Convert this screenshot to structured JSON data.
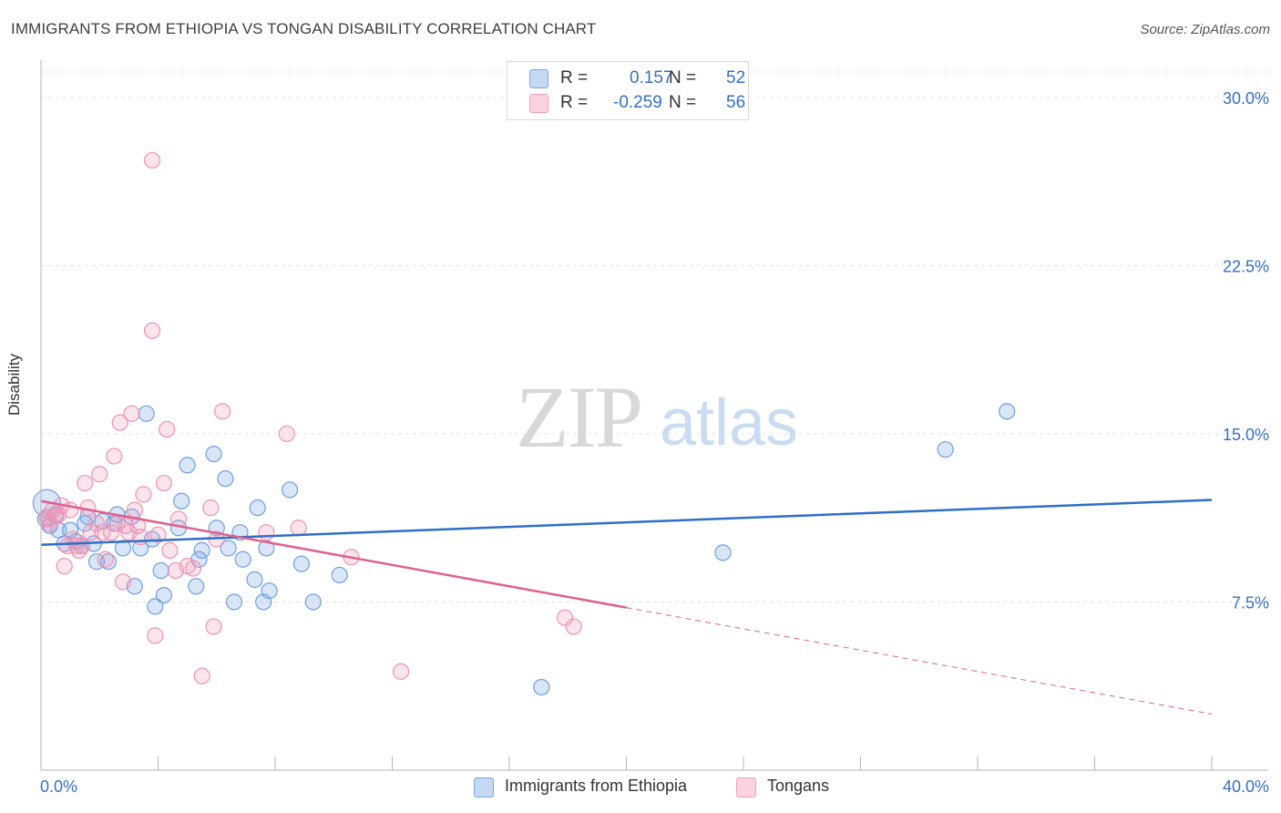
{
  "title": "IMMIGRANTS FROM ETHIOPIA VS TONGAN DISABILITY CORRELATION CHART",
  "source": "Source: ZipAtlas.com",
  "watermark": {
    "zip": "ZIP",
    "atlas": "atlas"
  },
  "legend": {
    "rows": [
      {
        "r_label": "R =",
        "r_value": "0.157",
        "n_label": "N =",
        "n_value": "52",
        "color": "#7ba7e6"
      },
      {
        "r_label": "R =",
        "r_value": "-0.259",
        "n_label": "N =",
        "n_value": "56",
        "color": "#f0a0bc"
      }
    ]
  },
  "bottom_legend": [
    {
      "label": "Immigrants from Ethiopia",
      "color": "#7ba7e6"
    },
    {
      "label": "Tongans",
      "color": "#f0a0bc"
    }
  ],
  "chart_data": {
    "type": "scatter",
    "ylabel": "Disability",
    "xlim": [
      0,
      40
    ],
    "ylim": [
      0,
      31.5
    ],
    "x_tick_labels": [
      "0.0%",
      "40.0%"
    ],
    "y_ticks": [
      7.5,
      15.0,
      22.5,
      30.0
    ],
    "y_tick_labels": [
      "7.5%",
      "15.0%",
      "22.5%",
      "30.0%"
    ],
    "grid": true,
    "series": [
      {
        "name": "Immigrants from Ethiopia",
        "color": "#6f9fe0",
        "line_color": "#2f6fc9",
        "trend": {
          "x": [
            0,
            40
          ],
          "y": [
            10.05,
            12.05
          ],
          "dashed_from": null
        },
        "points": [
          [
            0.2,
            11.9
          ],
          [
            0.3,
            10.9
          ],
          [
            0.5,
            11.4
          ],
          [
            0.6,
            10.7
          ],
          [
            0.8,
            10.1
          ],
          [
            1.0,
            10.7
          ],
          [
            1.2,
            10.2
          ],
          [
            1.4,
            10.0
          ],
          [
            1.5,
            11.0
          ],
          [
            1.6,
            11.3
          ],
          [
            1.8,
            10.1
          ],
          [
            1.9,
            9.3
          ],
          [
            2.1,
            11.1
          ],
          [
            2.3,
            9.3
          ],
          [
            2.5,
            11.0
          ],
          [
            2.6,
            11.4
          ],
          [
            2.8,
            9.9
          ],
          [
            3.1,
            11.3
          ],
          [
            3.2,
            8.2
          ],
          [
            3.4,
            9.9
          ],
          [
            3.6,
            15.9
          ],
          [
            3.8,
            10.3
          ],
          [
            3.9,
            7.3
          ],
          [
            4.1,
            8.9
          ],
          [
            4.2,
            7.8
          ],
          [
            4.7,
            10.8
          ],
          [
            4.8,
            12.0
          ],
          [
            5.0,
            13.6
          ],
          [
            5.3,
            8.2
          ],
          [
            5.4,
            9.4
          ],
          [
            5.5,
            9.8
          ],
          [
            5.9,
            14.1
          ],
          [
            6.0,
            10.8
          ],
          [
            6.3,
            13.0
          ],
          [
            6.4,
            9.9
          ],
          [
            6.6,
            7.5
          ],
          [
            6.8,
            10.6
          ],
          [
            6.9,
            9.4
          ],
          [
            7.3,
            8.5
          ],
          [
            7.4,
            11.7
          ],
          [
            7.6,
            7.5
          ],
          [
            7.8,
            8.0
          ],
          [
            7.7,
            9.9
          ],
          [
            8.5,
            12.5
          ],
          [
            8.9,
            9.2
          ],
          [
            9.3,
            7.5
          ],
          [
            10.2,
            8.7
          ],
          [
            17.1,
            3.7
          ],
          [
            23.3,
            9.7
          ],
          [
            30.9,
            14.3
          ],
          [
            33.0,
            16.0
          ],
          [
            0.15,
            11.2
          ]
        ]
      },
      {
        "name": "Tongans",
        "color": "#ef92b2",
        "line_color": "#e0608f",
        "trend": {
          "x": [
            0,
            40
          ],
          "y": [
            12.0,
            2.5
          ],
          "dashed_from": 20.0
        },
        "points": [
          [
            0.2,
            11.3
          ],
          [
            0.3,
            11.0
          ],
          [
            0.4,
            11.6
          ],
          [
            0.5,
            11.3
          ],
          [
            0.7,
            11.8
          ],
          [
            0.8,
            9.1
          ],
          [
            0.9,
            10.0
          ],
          [
            1.0,
            11.6
          ],
          [
            1.1,
            10.3
          ],
          [
            1.3,
            9.8
          ],
          [
            1.4,
            10.0
          ],
          [
            1.5,
            12.8
          ],
          [
            1.6,
            11.7
          ],
          [
            1.7,
            10.6
          ],
          [
            1.9,
            11.0
          ],
          [
            2.0,
            13.2
          ],
          [
            2.1,
            10.6
          ],
          [
            2.2,
            9.4
          ],
          [
            2.4,
            10.6
          ],
          [
            2.5,
            14.0
          ],
          [
            2.6,
            11.0
          ],
          [
            2.7,
            15.5
          ],
          [
            2.8,
            8.4
          ],
          [
            3.0,
            10.6
          ],
          [
            3.1,
            15.9
          ],
          [
            3.2,
            11.6
          ],
          [
            3.3,
            10.9
          ],
          [
            3.5,
            12.3
          ],
          [
            3.8,
            27.2
          ],
          [
            3.8,
            19.6
          ],
          [
            3.9,
            6.0
          ],
          [
            4.2,
            12.8
          ],
          [
            4.3,
            15.2
          ],
          [
            4.4,
            9.8
          ],
          [
            4.6,
            8.9
          ],
          [
            4.7,
            11.2
          ],
          [
            5.0,
            9.1
          ],
          [
            5.5,
            4.2
          ],
          [
            5.8,
            11.7
          ],
          [
            5.9,
            6.4
          ],
          [
            6.0,
            10.3
          ],
          [
            6.2,
            16.0
          ],
          [
            7.7,
            10.6
          ],
          [
            8.4,
            15.0
          ],
          [
            8.8,
            10.8
          ],
          [
            10.6,
            9.5
          ],
          [
            12.3,
            4.4
          ],
          [
            17.9,
            6.8
          ],
          [
            18.2,
            6.4
          ],
          [
            0.25,
            11.2
          ],
          [
            0.6,
            11.4
          ],
          [
            1.2,
            10.0
          ],
          [
            2.9,
            10.9
          ],
          [
            3.4,
            10.4
          ],
          [
            5.2,
            9.0
          ],
          [
            4.0,
            10.5
          ]
        ]
      }
    ]
  }
}
